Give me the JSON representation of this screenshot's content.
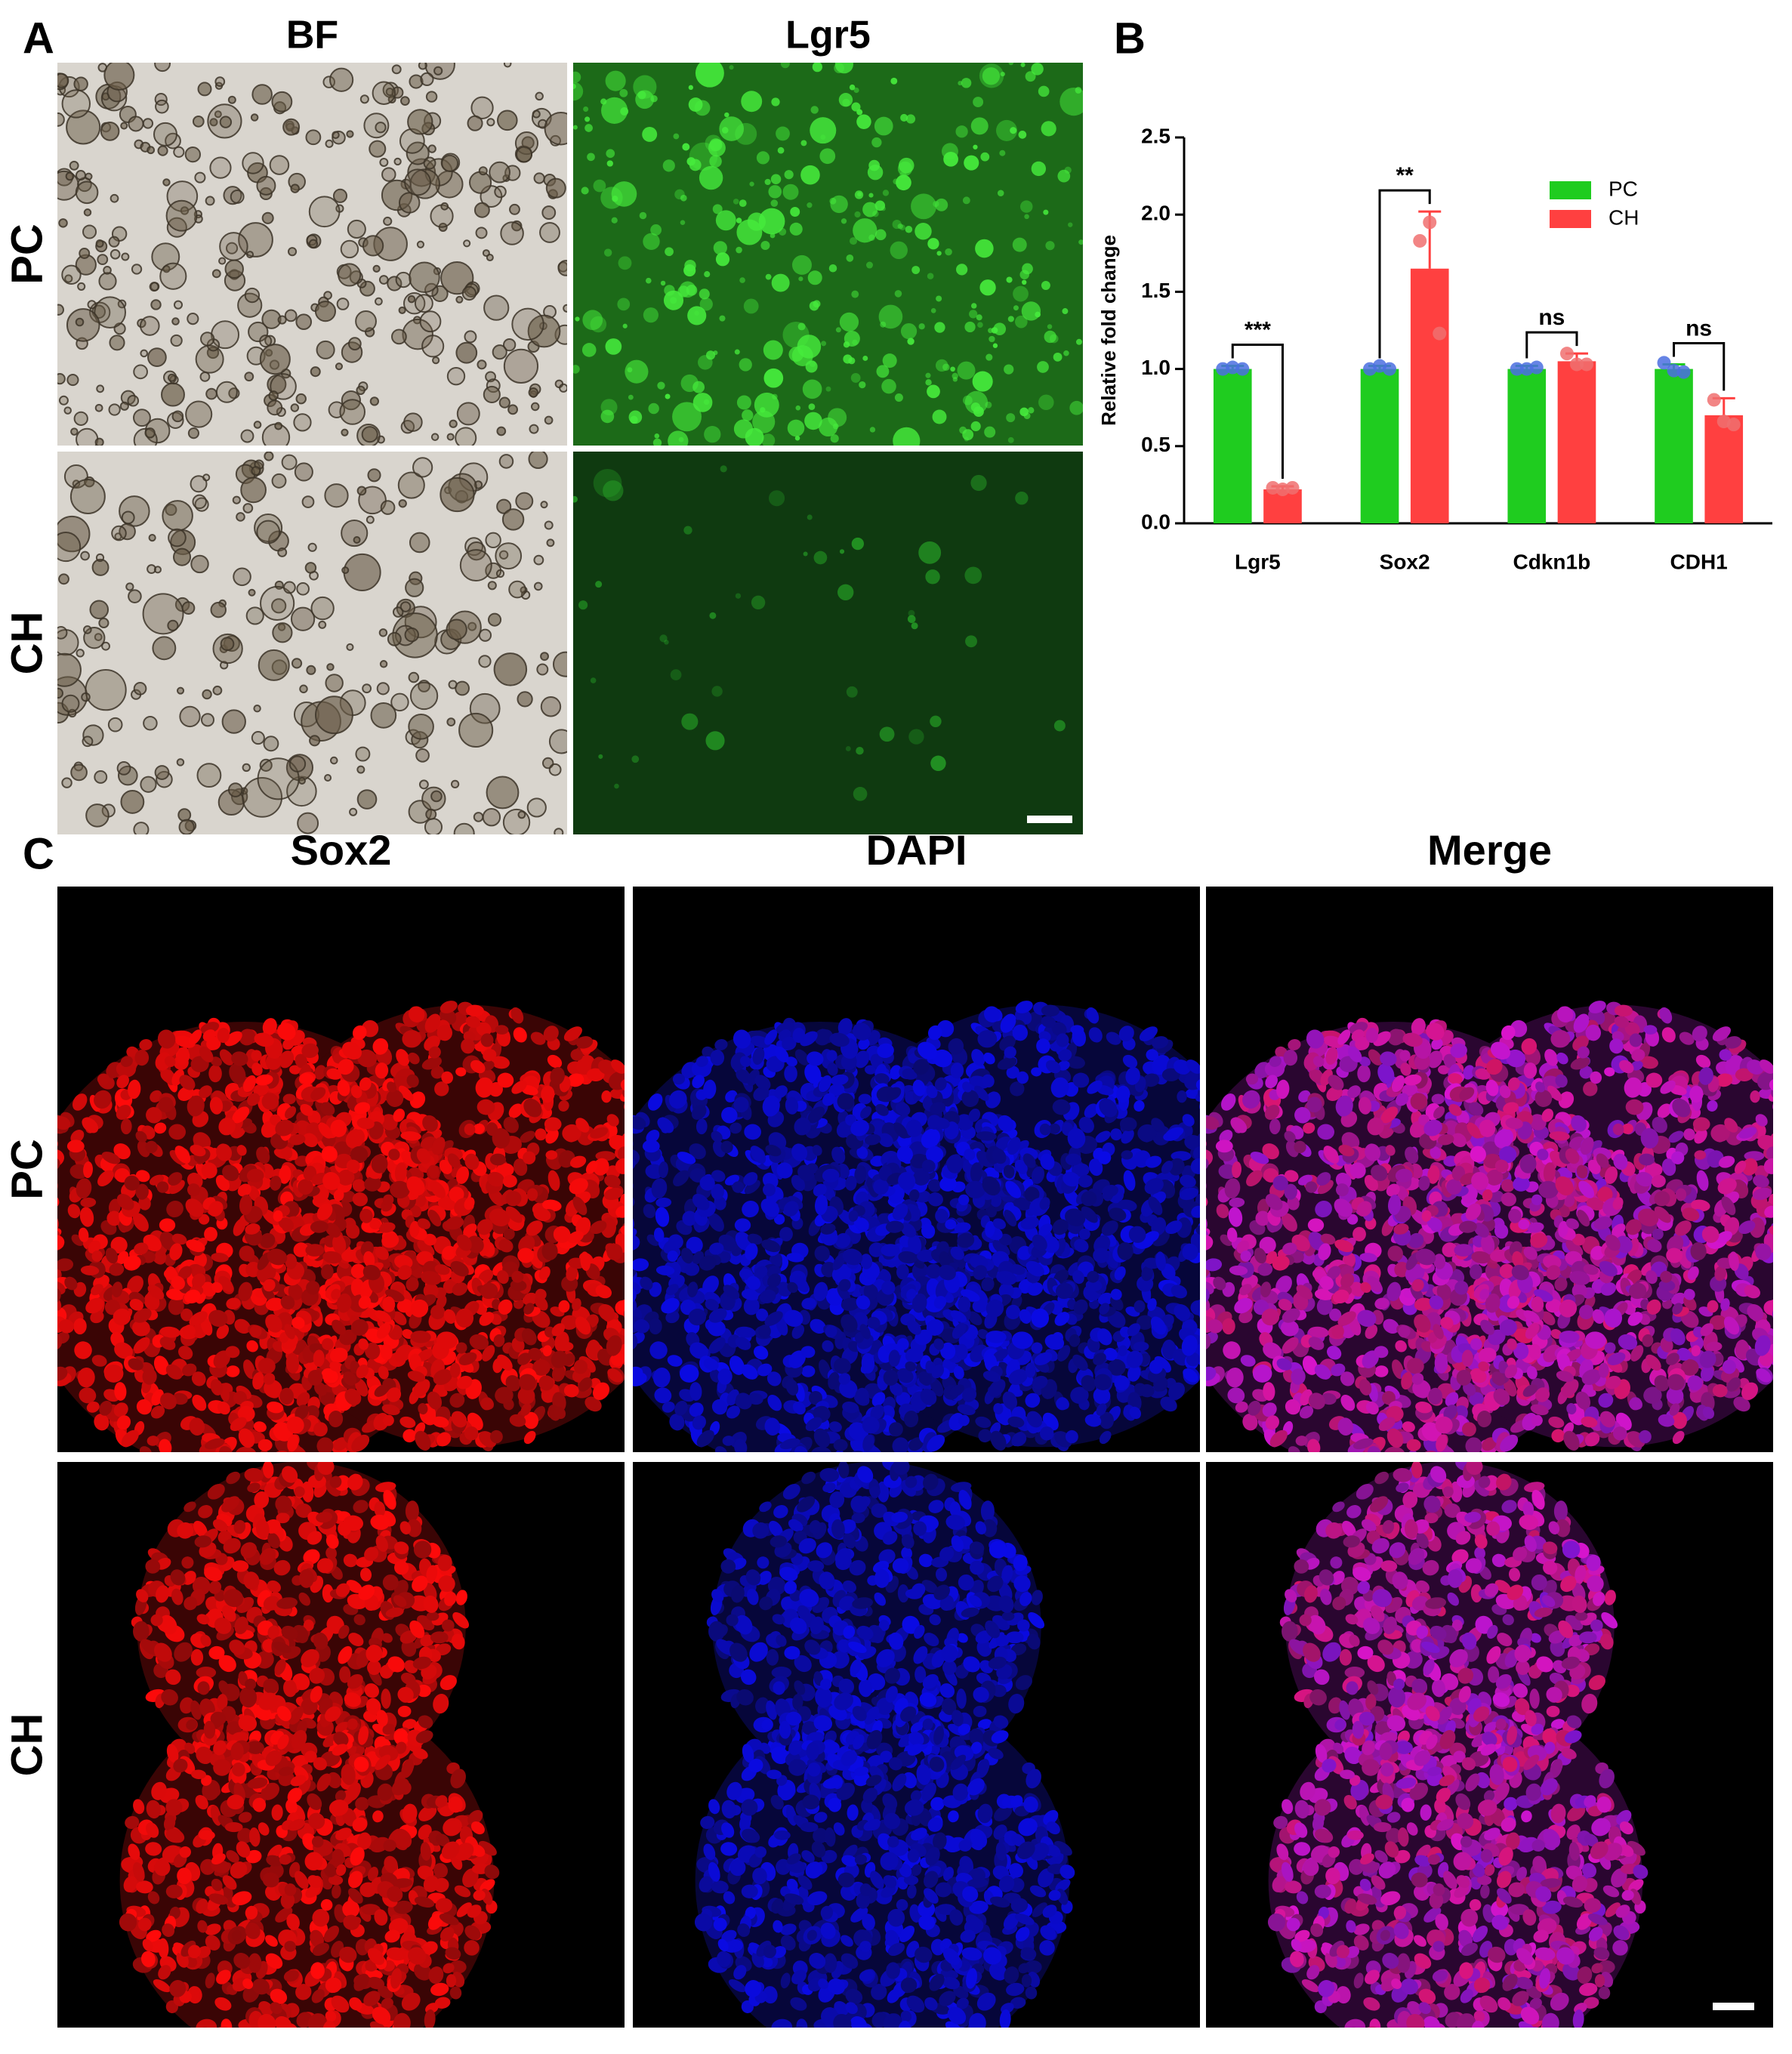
{
  "figure": {
    "panel_labels": [
      "A",
      "B",
      "C"
    ],
    "panel_a": {
      "columns": [
        "BF",
        "Lgr5"
      ],
      "rows": [
        "PC",
        "CH"
      ]
    },
    "panel_c": {
      "columns": [
        "Sox2",
        "DAPI",
        "Merge"
      ],
      "rows": [
        "PC",
        "CH"
      ]
    }
  },
  "chart_data": {
    "type": "bar",
    "y_label": "Relative fold change",
    "categories": [
      "Lgr5",
      "Sox2",
      "Cdkn1b",
      "CDH1"
    ],
    "series": [
      {
        "name": "PC",
        "color": "#1fcc1f",
        "point_color": "#4b6ee0",
        "values": [
          1.0,
          1.0,
          1.0,
          1.0
        ],
        "errors": [
          0.02,
          0.02,
          0.02,
          0.03
        ],
        "points": [
          [
            1.0,
            1.01,
            1.0
          ],
          [
            1.0,
            1.02,
            1.0
          ],
          [
            1.0,
            1.0,
            1.01
          ],
          [
            1.04,
            0.99,
            0.98
          ]
        ]
      },
      {
        "name": "CH",
        "color": "#ff4040",
        "point_color": "#f07070",
        "values": [
          0.22,
          1.65,
          1.05,
          0.7
        ],
        "errors": [
          0.02,
          0.37,
          0.05,
          0.11
        ],
        "points": [
          [
            0.23,
            0.22,
            0.23
          ],
          [
            1.83,
            1.95,
            1.23
          ],
          [
            1.1,
            1.03,
            1.03
          ],
          [
            0.8,
            0.66,
            0.64
          ]
        ]
      }
    ],
    "significance": [
      "***",
      "**",
      "ns",
      "ns"
    ],
    "ylim": [
      0,
      2.5
    ],
    "yticks": [
      {
        "value": 0,
        "label": "0.0"
      },
      {
        "value": 0.5,
        "label": "0.5"
      },
      {
        "value": 1,
        "label": "1.0"
      },
      {
        "value": 1.5,
        "label": "1.5"
      },
      {
        "value": 2,
        "label": "2.0"
      },
      {
        "value": 2.5,
        "label": "2.5"
      }
    ],
    "legend": "upper-right"
  }
}
